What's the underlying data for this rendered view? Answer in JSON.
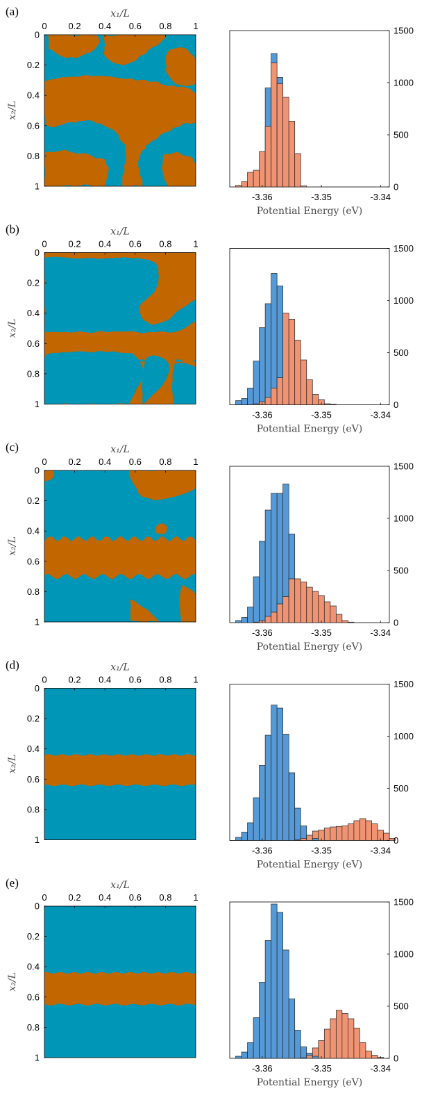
{
  "colors": {
    "phase_a": "#0096b8",
    "phase_b": "#c26600",
    "hist_blue": "#5599d6",
    "hist_orange": "#ef9373",
    "edge": "#222222"
  },
  "chart_data": [
    {
      "panel": "(a)",
      "type": "heatmap",
      "xlabel": "x₁/L",
      "ylabel": "x₂/L",
      "xticks": [
        "0",
        "0.2",
        "0.4",
        "0.6",
        "0.8",
        "1"
      ],
      "yticks": [
        "0",
        "0.2",
        "0.4",
        "0.6",
        "0.8",
        "1"
      ],
      "xlim": [
        0,
        1
      ],
      "ylim": [
        1,
        0
      ],
      "stripe": null,
      "histogram": {
        "type": "bar",
        "xlabel": "Potential Energy (eV)",
        "xticks": [
          "-3.36",
          "-3.35",
          "-3.34"
        ],
        "yticks": [
          "0",
          "500",
          "1000",
          "1500"
        ],
        "xlim": [
          -3.3655,
          -3.3385
        ],
        "ylim": [
          0,
          1500
        ],
        "y_axis_side": "right",
        "bin_start": -3.3645,
        "bin_width": 0.001,
        "series": [
          {
            "values": [
              0,
              0,
              0,
              0,
              0,
              950,
              1280,
              1050,
              0,
              0,
              0,
              0,
              0,
              0,
              0,
              0,
              0,
              0,
              0,
              0,
              0,
              0,
              0,
              0,
              0,
              0,
              0
            ]
          },
          {
            "values": [
              15,
              50,
              140,
              160,
              340,
              580,
              1190,
              990,
              860,
              630,
              320,
              10,
              0,
              0,
              0,
              0,
              0,
              0,
              0,
              0,
              0,
              0,
              0,
              0,
              0,
              0,
              0
            ]
          }
        ]
      }
    },
    {
      "panel": "(b)",
      "type": "heatmap",
      "xlabel": "x₁/L",
      "ylabel": "x₂/L",
      "xticks": [
        "0",
        "0.2",
        "0.4",
        "0.6",
        "0.8",
        "1"
      ],
      "yticks": [
        "0",
        "0.2",
        "0.4",
        "0.6",
        "0.8",
        "1"
      ],
      "xlim": [
        0,
        1
      ],
      "ylim": [
        1,
        0
      ],
      "stripe": [
        0.47,
        0.72
      ],
      "histogram": {
        "type": "bar",
        "xlabel": "Potential Energy (eV)",
        "xticks": [
          "-3.36",
          "-3.35",
          "-3.34"
        ],
        "yticks": [
          "0",
          "500",
          "1000",
          "1500"
        ],
        "xlim": [
          -3.3655,
          -3.3385
        ],
        "ylim": [
          0,
          1500
        ],
        "y_axis_side": "right",
        "bin_start": -3.3645,
        "bin_width": 0.001,
        "series": [
          {
            "values": [
              40,
              60,
              160,
              420,
              740,
              970,
              1260,
              1140,
              0,
              0,
              0,
              0,
              0,
              0,
              0,
              0,
              0,
              0,
              0,
              0,
              0,
              0,
              0,
              0,
              0,
              0,
              0
            ]
          },
          {
            "values": [
              0,
              0,
              0,
              10,
              30,
              70,
              160,
              260,
              880,
              820,
              620,
              430,
              240,
              100,
              50,
              10,
              5,
              0,
              0,
              0,
              0,
              0,
              0,
              0,
              0,
              0,
              0
            ]
          }
        ]
      }
    },
    {
      "panel": "(c)",
      "type": "heatmap",
      "xlabel": "x₁/L",
      "ylabel": "x₂/L",
      "xticks": [
        "0",
        "0.2",
        "0.4",
        "0.6",
        "0.8",
        "1"
      ],
      "yticks": [
        "0",
        "0.2",
        "0.4",
        "0.6",
        "0.8",
        "1"
      ],
      "xlim": [
        0,
        1
      ],
      "ylim": [
        1,
        0
      ],
      "stripe": [
        0.45,
        0.7
      ],
      "histogram": {
        "type": "bar",
        "xlabel": "Potential Energy (eV)",
        "xticks": [
          "-3.36",
          "-3.35",
          "-3.34"
        ],
        "yticks": [
          "0",
          "500",
          "1000",
          "1500"
        ],
        "xlim": [
          -3.3655,
          -3.3385
        ],
        "ylim": [
          0,
          1500
        ],
        "y_axis_side": "right",
        "bin_start": -3.3645,
        "bin_width": 0.001,
        "series": [
          {
            "values": [
              20,
              50,
              150,
              440,
              780,
              1080,
              1240,
              1240,
              1330,
              850,
              0,
              0,
              0,
              0,
              0,
              0,
              0,
              0,
              0,
              0,
              0,
              0,
              0,
              0,
              0,
              0,
              0
            ]
          },
          {
            "values": [
              0,
              0,
              0,
              5,
              20,
              60,
              100,
              180,
              250,
              420,
              420,
              390,
              340,
              300,
              260,
              200,
              160,
              80,
              20,
              5,
              0,
              0,
              0,
              0,
              0,
              0,
              0
            ]
          }
        ]
      }
    },
    {
      "panel": "(d)",
      "type": "heatmap",
      "xlabel": "x₁/L",
      "ylabel": "x₂/L",
      "xticks": [
        "0",
        "0.2",
        "0.4",
        "0.6",
        "0.8",
        "1"
      ],
      "yticks": [
        "0",
        "0.2",
        "0.4",
        "0.6",
        "0.8",
        "1"
      ],
      "xlim": [
        0,
        1
      ],
      "ylim": [
        1,
        0
      ],
      "stripe": [
        0.44,
        0.64
      ],
      "histogram": {
        "type": "bar",
        "xlabel": "Potential Energy (eV)",
        "xticks": [
          "-3.36",
          "-3.35",
          "-3.34"
        ],
        "yticks": [
          "0",
          "500",
          "1000",
          "1500"
        ],
        "xlim": [
          -3.3655,
          -3.3385
        ],
        "ylim": [
          0,
          1500
        ],
        "y_axis_side": "right",
        "bin_start": -3.3645,
        "bin_width": 0.001,
        "series": [
          {
            "values": [
              30,
              80,
              170,
              410,
              720,
              1010,
              1300,
              1270,
              1020,
              650,
              310,
              140,
              50,
              20,
              0,
              0,
              0,
              0,
              0,
              0,
              0,
              0,
              0,
              0,
              0,
              0,
              0
            ]
          },
          {
            "values": [
              0,
              0,
              0,
              0,
              0,
              0,
              0,
              0,
              0,
              0,
              5,
              20,
              50,
              90,
              100,
              120,
              130,
              135,
              140,
              160,
              190,
              210,
              190,
              160,
              100,
              70,
              20
            ]
          }
        ]
      }
    },
    {
      "panel": "(e)",
      "type": "heatmap",
      "xlabel": "x₁/L",
      "ylabel": "x₂/L",
      "xticks": [
        "0",
        "0.2",
        "0.4",
        "0.6",
        "0.8",
        "1"
      ],
      "yticks": [
        "0",
        "0.2",
        "0.4",
        "0.6",
        "0.8",
        "1"
      ],
      "xlim": [
        0,
        1
      ],
      "ylim": [
        1,
        0
      ],
      "stripe": [
        0.44,
        0.65
      ],
      "histogram": {
        "type": "bar",
        "xlabel": "Potential Energy (eV)",
        "xticks": [
          "-3.36",
          "-3.35",
          "-3.34"
        ],
        "yticks": [
          "0",
          "500",
          "1000",
          "1500"
        ],
        "xlim": [
          -3.3655,
          -3.3385
        ],
        "ylim": [
          0,
          1500
        ],
        "y_axis_side": "right",
        "bin_start": -3.3645,
        "bin_width": 0.001,
        "series": [
          {
            "values": [
              20,
              60,
              150,
              390,
              730,
              1130,
              1480,
              1400,
              1040,
              570,
              270,
              110,
              50,
              20,
              0,
              0,
              0,
              0,
              0,
              0,
              0,
              0,
              0,
              0,
              0,
              0,
              0
            ]
          },
          {
            "values": [
              0,
              0,
              0,
              0,
              0,
              0,
              0,
              0,
              0,
              0,
              0,
              5,
              30,
              100,
              170,
              280,
              380,
              460,
              430,
              380,
              290,
              150,
              70,
              30,
              10,
              0,
              0
            ]
          }
        ]
      }
    }
  ]
}
